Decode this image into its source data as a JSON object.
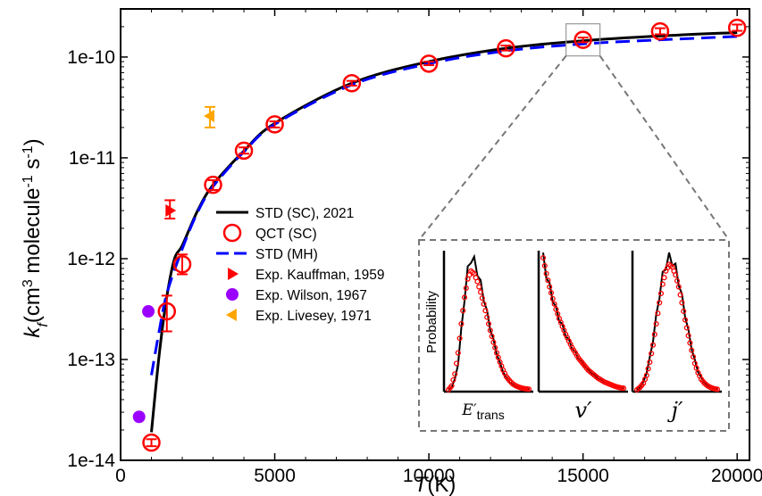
{
  "chart_data": {
    "type": "scatter",
    "xlabel": "T(K)",
    "ylabel": "k_f(cm^3 molecule^-1 s^-1)",
    "x_ticks": [
      "0",
      "5000",
      "10000",
      "15000",
      "20000"
    ],
    "y_ticks": [
      "1e-14",
      "1e-13",
      "1e-12",
      "1e-11",
      "1e-10"
    ],
    "xlim": [
      0,
      20400
    ],
    "ylim": [
      1e-14,
      3e-10
    ],
    "y_scale": "log",
    "legend_position": "center-right",
    "series": [
      {
        "name": "STD (SC), 2021",
        "kind": "line",
        "color": "#000000",
        "x": [
          1000,
          1250,
          1500,
          1750,
          2000,
          2500,
          3000,
          4000,
          5000,
          7500,
          10000,
          12500,
          15000,
          17500,
          20000
        ],
        "y": [
          1.9e-14,
          1.1e-13,
          4.2e-13,
          1e-12,
          1.35e-12,
          3e-12,
          5.4e-12,
          1.17e-11,
          2.2e-11,
          5.5e-11,
          9e-11,
          1.22e-10,
          1.45e-10,
          1.62e-10,
          1.75e-10
        ]
      },
      {
        "name": "QCT (SC)",
        "kind": "marker-errorbar",
        "color": "#ff0000",
        "x": [
          1000,
          1500,
          2000,
          3000,
          4000,
          5000,
          7500,
          10000,
          12500,
          15000,
          17500,
          20000
        ],
        "y": [
          1.5e-14,
          3e-13,
          8.8e-13,
          5.4e-12,
          1.18e-11,
          2.15e-11,
          5.5e-11,
          8.6e-11,
          1.22e-10,
          1.48e-10,
          1.8e-10,
          1.95e-10
        ],
        "y_err_low": [
          1.38e-14,
          1.9e-13,
          7e-13,
          4.8e-12,
          1.1e-11,
          2e-11,
          5.2e-11,
          8.3e-11,
          1.16e-10,
          1.4e-10,
          1.68e-10,
          1.82e-10
        ],
        "y_err_high": [
          1.62e-14,
          4.3e-13,
          1.1e-12,
          6e-12,
          1.27e-11,
          2.3e-11,
          5.8e-11,
          9e-11,
          1.3e-10,
          1.56e-10,
          1.93e-10,
          2.1e-10
        ]
      },
      {
        "name": "STD (MH)",
        "kind": "dashed-line",
        "color": "#0000ff",
        "x": [
          1000,
          1250,
          1500,
          2000,
          2500,
          3000,
          4000,
          5000,
          7500,
          10000,
          12500,
          15000,
          17500,
          20000
        ],
        "y": [
          7e-14,
          1.9e-13,
          4.5e-13,
          1.25e-12,
          2.9e-12,
          5.2e-12,
          1.15e-11,
          2.15e-11,
          5.3e-11,
          8.6e-11,
          1.15e-10,
          1.35e-10,
          1.48e-10,
          1.6e-10
        ]
      },
      {
        "name": "Exp. Kauffman, 1959",
        "kind": "marker",
        "marker": "triangle-right",
        "color": "#ff0000",
        "x": [
          1600
        ],
        "y": [
          3e-12
        ],
        "y_err_low": [
          2.5e-12
        ],
        "y_err_high": [
          3.8e-12
        ]
      },
      {
        "name": "Exp. Wilson, 1967",
        "kind": "marker",
        "marker": "circle",
        "color": "#9b00ff",
        "x": [
          600,
          900
        ],
        "y": [
          2.7e-14,
          3e-13
        ]
      },
      {
        "name": "Exp. Livesey, 1971",
        "kind": "marker",
        "marker": "triangle-left",
        "color": "#ffa500",
        "x": [
          2900
        ],
        "y": [
          2.6e-11
        ],
        "y_err_low": [
          2e-11
        ],
        "y_err_high": [
          3.2e-11
        ]
      }
    ],
    "inset": {
      "zoom_box_at": {
        "x": 15000,
        "y": 1.48e-10
      },
      "ylabel": "Probability",
      "panels": [
        {
          "label": "E′trans",
          "black": [
            0,
            0.02,
            0.08,
            0.2,
            0.45,
            0.7,
            0.9,
            1.0,
            0.97,
            0.9,
            0.8,
            0.7,
            0.58,
            0.47,
            0.37,
            0.28,
            0.2,
            0.14,
            0.09,
            0.06,
            0.04,
            0.025,
            0.015,
            0.01,
            0.006,
            0.004
          ],
          "red": [
            0,
            0.03,
            0.12,
            0.28,
            0.5,
            0.7,
            0.84,
            0.9,
            0.88,
            0.82,
            0.74,
            0.65,
            0.55,
            0.45,
            0.36,
            0.28,
            0.21,
            0.15,
            0.1,
            0.07,
            0.045,
            0.03,
            0.02,
            0.012,
            0.008,
            0.005
          ]
        },
        {
          "label": "v′",
          "black": [
            1.0,
            0.88,
            0.78,
            0.69,
            0.61,
            0.54,
            0.48,
            0.42,
            0.37,
            0.32,
            0.28,
            0.24,
            0.21,
            0.18,
            0.15,
            0.13,
            0.11,
            0.09,
            0.075,
            0.06,
            0.05,
            0.04,
            0.03,
            0.022,
            0.016,
            0.012
          ],
          "red": [
            1.0,
            0.88,
            0.78,
            0.69,
            0.61,
            0.54,
            0.48,
            0.42,
            0.37,
            0.32,
            0.28,
            0.24,
            0.21,
            0.18,
            0.15,
            0.13,
            0.11,
            0.09,
            0.075,
            0.06,
            0.05,
            0.04,
            0.03,
            0.022,
            0.016,
            0.012
          ]
        },
        {
          "label": "j′",
          "black": [
            0,
            0.02,
            0.06,
            0.13,
            0.24,
            0.38,
            0.55,
            0.72,
            0.86,
            0.95,
            1.0,
            0.98,
            0.92,
            0.82,
            0.7,
            0.57,
            0.44,
            0.32,
            0.22,
            0.14,
            0.09,
            0.055,
            0.03,
            0.018,
            0.01,
            0.005
          ],
          "red": [
            0,
            0.02,
            0.05,
            0.11,
            0.21,
            0.34,
            0.5,
            0.66,
            0.8,
            0.9,
            0.95,
            0.93,
            0.87,
            0.78,
            0.66,
            0.53,
            0.41,
            0.3,
            0.2,
            0.13,
            0.08,
            0.05,
            0.03,
            0.017,
            0.009,
            0.004
          ]
        }
      ]
    }
  }
}
